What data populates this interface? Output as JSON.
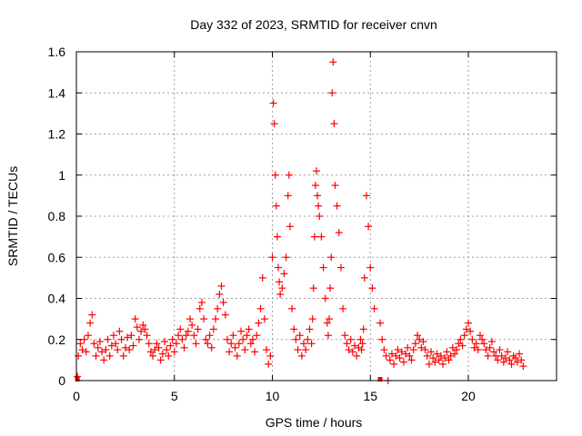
{
  "chart_data": {
    "type": "scatter",
    "title": "Day 332 of 2023, SRMTID for receiver cnvn",
    "xlabel": "GPS time / hours",
    "ylabel": "SRMTID / TECUs",
    "xlim": [
      0,
      24.5
    ],
    "ylim": [
      0,
      1.6
    ],
    "xticks": [
      0,
      5,
      10,
      15,
      20
    ],
    "yticks": [
      0,
      0.2,
      0.4,
      0.6,
      0.8,
      1,
      1.2,
      1.4,
      1.6
    ],
    "xtick_labels": [
      "0",
      "5",
      "10",
      "15",
      "20"
    ],
    "ytick_labels": [
      "0",
      "0.2",
      "0.4",
      "0.6",
      "0.8",
      "1",
      "1.2",
      "1.4",
      "1.6"
    ],
    "grid": true,
    "marker": "+",
    "color": "#ff0000",
    "series": [
      {
        "name": "SRMTID",
        "x": [
          0.05,
          0.1,
          0.2,
          0.3,
          0.4,
          0.5,
          0.6,
          0.7,
          0.8,
          0.9,
          1.0,
          1.1,
          1.2,
          1.3,
          1.4,
          1.5,
          1.6,
          1.7,
          1.8,
          1.9,
          2.0,
          2.1,
          2.2,
          2.3,
          2.4,
          2.5,
          2.6,
          2.7,
          2.8,
          2.9,
          3.0,
          3.1,
          3.2,
          3.3,
          3.4,
          3.5,
          3.6,
          3.7,
          3.8,
          3.9,
          4.0,
          4.1,
          4.2,
          4.3,
          4.4,
          4.5,
          4.6,
          4.7,
          4.8,
          4.9,
          5.0,
          5.1,
          5.2,
          5.3,
          5.4,
          5.5,
          5.6,
          5.7,
          5.8,
          5.9,
          6.0,
          6.1,
          6.2,
          6.3,
          6.4,
          6.5,
          6.6,
          6.7,
          6.8,
          6.9,
          7.0,
          7.1,
          7.2,
          7.3,
          7.4,
          7.5,
          7.6,
          7.7,
          7.8,
          7.9,
          8.0,
          8.1,
          8.2,
          8.3,
          8.4,
          8.5,
          8.6,
          8.7,
          8.8,
          8.9,
          9.0,
          9.1,
          9.2,
          9.3,
          9.4,
          9.5,
          9.6,
          9.7,
          9.8,
          9.9,
          10.0,
          10.05,
          10.1,
          10.15,
          10.2,
          10.25,
          10.3,
          10.35,
          10.4,
          10.5,
          10.6,
          10.7,
          10.8,
          10.85,
          10.9,
          11.0,
          11.1,
          11.2,
          11.3,
          11.4,
          11.5,
          11.6,
          11.7,
          11.8,
          11.9,
          12.0,
          12.05,
          12.1,
          12.15,
          12.2,
          12.25,
          12.3,
          12.35,
          12.4,
          12.5,
          12.6,
          12.7,
          12.8,
          12.85,
          12.9,
          12.95,
          13.0,
          13.05,
          13.1,
          13.15,
          13.2,
          13.3,
          13.4,
          13.5,
          13.6,
          13.7,
          13.8,
          13.9,
          14.0,
          14.1,
          14.2,
          14.3,
          14.4,
          14.5,
          14.55,
          14.6,
          14.65,
          14.7,
          14.8,
          14.9,
          15.0,
          15.1,
          15.2,
          15.5,
          15.6,
          15.7,
          15.8,
          15.9,
          16.0,
          16.1,
          16.2,
          16.3,
          16.4,
          16.5,
          16.6,
          16.7,
          16.8,
          16.9,
          17.0,
          17.1,
          17.2,
          17.3,
          17.4,
          17.5,
          17.6,
          17.7,
          17.8,
          17.9,
          18.0,
          18.1,
          18.2,
          18.3,
          18.4,
          18.5,
          18.6,
          18.7,
          18.8,
          18.9,
          19.0,
          19.1,
          19.2,
          19.3,
          19.4,
          19.5,
          19.6,
          19.7,
          19.8,
          19.9,
          20.0,
          20.1,
          20.2,
          20.3,
          20.4,
          20.5,
          20.6,
          20.7,
          20.8,
          20.9,
          21.0,
          21.1,
          21.2,
          21.3,
          21.4,
          21.5,
          21.6,
          21.7,
          21.8,
          21.9,
          22.0,
          22.1,
          22.2,
          22.3,
          22.4,
          22.5,
          22.6,
          22.7,
          22.8
        ],
        "y": [
          0.02,
          0.12,
          0.18,
          0.15,
          0.2,
          0.14,
          0.22,
          0.28,
          0.32,
          0.18,
          0.12,
          0.16,
          0.19,
          0.14,
          0.1,
          0.15,
          0.2,
          0.12,
          0.17,
          0.22,
          0.18,
          0.15,
          0.24,
          0.2,
          0.12,
          0.16,
          0.21,
          0.15,
          0.22,
          0.17,
          0.3,
          0.26,
          0.2,
          0.24,
          0.27,
          0.25,
          0.22,
          0.18,
          0.14,
          0.12,
          0.15,
          0.18,
          0.16,
          0.1,
          0.13,
          0.19,
          0.15,
          0.12,
          0.17,
          0.2,
          0.14,
          0.18,
          0.22,
          0.25,
          0.2,
          0.16,
          0.22,
          0.24,
          0.3,
          0.27,
          0.22,
          0.18,
          0.25,
          0.35,
          0.38,
          0.3,
          0.2,
          0.18,
          0.22,
          0.16,
          0.25,
          0.3,
          0.35,
          0.42,
          0.46,
          0.38,
          0.32,
          0.2,
          0.14,
          0.18,
          0.22,
          0.16,
          0.12,
          0.18,
          0.24,
          0.2,
          0.15,
          0.22,
          0.25,
          0.18,
          0.2,
          0.14,
          0.22,
          0.28,
          0.35,
          0.5,
          0.3,
          0.15,
          0.08,
          0.12,
          0.6,
          1.35,
          1.25,
          1.0,
          0.85,
          0.7,
          0.55,
          0.48,
          0.42,
          0.45,
          0.52,
          0.6,
          0.9,
          1.0,
          0.75,
          0.35,
          0.25,
          0.2,
          0.15,
          0.22,
          0.12,
          0.18,
          0.15,
          0.2,
          0.25,
          0.18,
          0.3,
          0.45,
          0.7,
          0.95,
          1.02,
          0.9,
          0.85,
          0.8,
          0.7,
          0.55,
          0.4,
          0.28,
          0.22,
          0.3,
          0.45,
          0.6,
          1.4,
          1.55,
          1.25,
          0.95,
          0.85,
          0.72,
          0.55,
          0.35,
          0.22,
          0.18,
          0.15,
          0.2,
          0.14,
          0.17,
          0.12,
          0.16,
          0.2,
          0.15,
          0.18,
          0.25,
          0.5,
          0.9,
          0.75,
          0.55,
          0.45,
          0.35,
          0.28,
          0.2,
          0.15,
          0.12,
          0.0,
          0.1,
          0.13,
          0.08,
          0.12,
          0.15,
          0.11,
          0.14,
          0.09,
          0.13,
          0.16,
          0.12,
          0.1,
          0.15,
          0.18,
          0.22,
          0.2,
          0.16,
          0.19,
          0.15,
          0.12,
          0.08,
          0.14,
          0.11,
          0.09,
          0.13,
          0.1,
          0.12,
          0.08,
          0.11,
          0.14,
          0.1,
          0.12,
          0.16,
          0.13,
          0.15,
          0.18,
          0.2,
          0.17,
          0.22,
          0.25,
          0.28,
          0.24,
          0.2,
          0.16,
          0.18,
          0.15,
          0.22,
          0.2,
          0.18,
          0.15,
          0.12,
          0.16,
          0.19,
          0.14,
          0.12,
          0.1,
          0.15,
          0.12,
          0.09,
          0.11,
          0.14,
          0.1,
          0.08,
          0.12,
          0.11,
          0.09,
          0.13,
          0.1,
          0.07
        ]
      }
    ],
    "outliers": [
      {
        "x": 0.05,
        "y": 0.0
      },
      {
        "x": 15.5,
        "y": 0.0
      }
    ]
  }
}
